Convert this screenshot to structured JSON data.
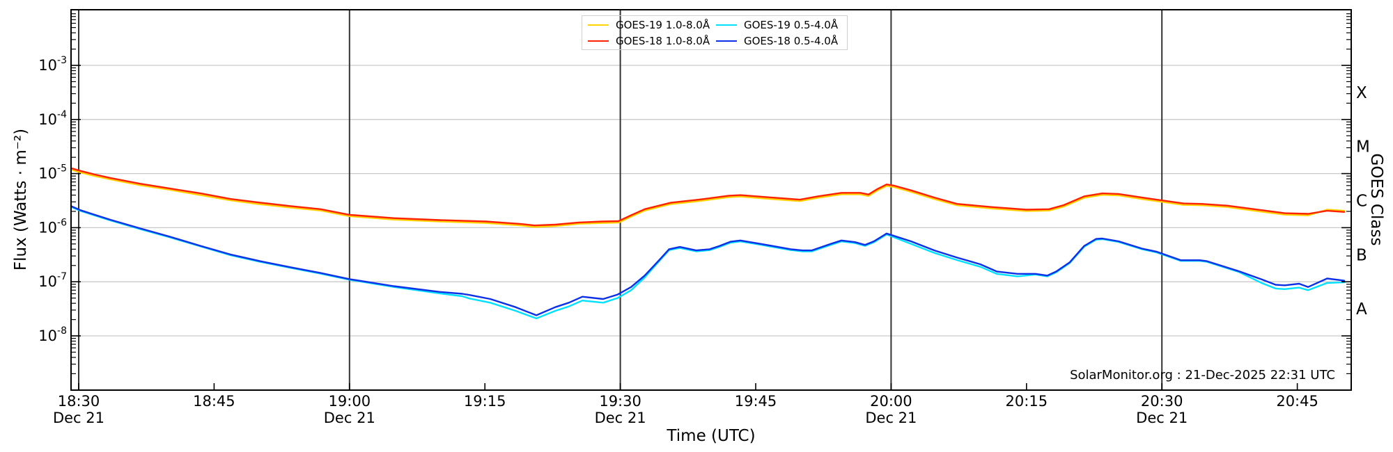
{
  "figure": {
    "watermark": "SolarMonitor.org : 21-Dec-2025 22:31 UTC",
    "background": "#ffffff"
  },
  "chart_data": {
    "type": "line",
    "title": "",
    "xlabel": "Time (UTC)",
    "ylabel": "Flux (Watts · m⁻²)",
    "ylabel_right": "GOES Class",
    "yscale": "log",
    "ylim": [
      1e-09,
      0.01
    ],
    "x_axis_note": "minutes after 18:30 UTC, 21 Dec 2025",
    "x_minutes_range": [
      -0.85,
      141.0
    ],
    "x_major_tick_minutes": [
      0,
      15,
      30,
      45,
      60,
      75,
      90,
      105,
      120,
      135
    ],
    "x_major_tick_labels": [
      "18:30",
      "18:45",
      "19:00",
      "19:15",
      "19:30",
      "19:45",
      "20:00",
      "20:15",
      "20:30",
      "20:45"
    ],
    "x_date_tick_minutes": [
      0,
      30,
      60,
      90,
      120
    ],
    "x_date_label": "Dec 21",
    "y_tick_exponents": [
      -3,
      -4,
      -5,
      -6,
      -7,
      -8
    ],
    "y_tick_labels": [
      "10⁻³",
      "10⁻⁴",
      "10⁻⁵",
      "10⁻⁶",
      "10⁻⁷",
      "10⁻⁸"
    ],
    "goes_classes": [
      {
        "label": "X",
        "exponent": -3.5
      },
      {
        "label": "M",
        "exponent": -4.5
      },
      {
        "label": "C",
        "exponent": -5.5
      },
      {
        "label": "B",
        "exponent": -6.5
      },
      {
        "label": "A",
        "exponent": -7.5
      }
    ],
    "grid_on": true,
    "grid_color": "#c9c9c9",
    "date_line_color": "#333333",
    "legend_position": "upper center",
    "series": [
      {
        "name": "GOES-19 1.0-8.0Å",
        "color": "#ffd300",
        "points": [
          [
            -0.85,
            1.18e-05
          ],
          [
            0.2,
            1.05e-05
          ],
          [
            1.8,
            9e-06
          ],
          [
            3.5,
            7.8e-06
          ],
          [
            6.8,
            6.1e-06
          ],
          [
            10.1,
            5e-06
          ],
          [
            13.5,
            4e-06
          ],
          [
            16.8,
            3.2e-06
          ],
          [
            20.1,
            2.7e-06
          ],
          [
            23.5,
            2.35e-06
          ],
          [
            26.8,
            2.07e-06
          ],
          [
            30,
            1.63e-06
          ],
          [
            34.9,
            1.41e-06
          ],
          [
            40,
            1.3e-06
          ],
          [
            45.1,
            1.22e-06
          ],
          [
            49,
            1.1e-06
          ],
          [
            50.5,
            1.03e-06
          ],
          [
            52.8,
            1.07e-06
          ],
          [
            55.4,
            1.18e-06
          ],
          [
            58,
            1.22e-06
          ],
          [
            59.8,
            1.24e-06
          ],
          [
            61.2,
            1.6e-06
          ],
          [
            62.7,
            2.07e-06
          ],
          [
            65.6,
            2.73e-06
          ],
          [
            68.7,
            3.1e-06
          ],
          [
            72,
            3.67e-06
          ],
          [
            73.3,
            3.76e-06
          ],
          [
            76.8,
            3.38e-06
          ],
          [
            79.9,
            3.1e-06
          ],
          [
            81.9,
            3.57e-06
          ],
          [
            84.5,
            4.14e-06
          ],
          [
            86.6,
            4.14e-06
          ],
          [
            87.5,
            3.85e-06
          ],
          [
            88.5,
            4.89e-06
          ],
          [
            89.5,
            5.92e-06
          ],
          [
            90.3,
            5.64e-06
          ],
          [
            92.2,
            4.61e-06
          ],
          [
            94.8,
            3.38e-06
          ],
          [
            97.3,
            2.59e-06
          ],
          [
            101.2,
            2.26e-06
          ],
          [
            105,
            2.02e-06
          ],
          [
            107.5,
            2.07e-06
          ],
          [
            109.1,
            2.44e-06
          ],
          [
            111.4,
            3.57e-06
          ],
          [
            113.4,
            4.04e-06
          ],
          [
            115.2,
            3.95e-06
          ],
          [
            117.8,
            3.38e-06
          ],
          [
            119.4,
            3.1e-06
          ],
          [
            122.4,
            2.63e-06
          ],
          [
            124.4,
            2.59e-06
          ],
          [
            127.3,
            2.4e-06
          ],
          [
            131.1,
            1.97e-06
          ],
          [
            133.6,
            1.74e-06
          ],
          [
            136.2,
            1.69e-06
          ],
          [
            138.3,
            2.15e-06
          ],
          [
            140.2,
            2.05e-06
          ]
        ]
      },
      {
        "name": "GOES-18 1.0-8.0Å",
        "color": "#ff2200",
        "points": [
          [
            -0.85,
            1.26e-05
          ],
          [
            0.2,
            1.12e-05
          ],
          [
            1.8,
            9.6e-06
          ],
          [
            3.5,
            8.3e-06
          ],
          [
            6.8,
            6.5e-06
          ],
          [
            10.1,
            5.3e-06
          ],
          [
            13.5,
            4.3e-06
          ],
          [
            16.8,
            3.4e-06
          ],
          [
            20.1,
            2.9e-06
          ],
          [
            23.5,
            2.5e-06
          ],
          [
            26.8,
            2.2e-06
          ],
          [
            30,
            1.73e-06
          ],
          [
            34.9,
            1.5e-06
          ],
          [
            40,
            1.38e-06
          ],
          [
            45.1,
            1.3e-06
          ],
          [
            49,
            1.17e-06
          ],
          [
            50.5,
            1.1e-06
          ],
          [
            52.8,
            1.14e-06
          ],
          [
            55.4,
            1.25e-06
          ],
          [
            58,
            1.3e-06
          ],
          [
            59.8,
            1.32e-06
          ],
          [
            61.2,
            1.7e-06
          ],
          [
            62.7,
            2.2e-06
          ],
          [
            65.6,
            2.9e-06
          ],
          [
            68.7,
            3.3e-06
          ],
          [
            72,
            3.9e-06
          ],
          [
            73.3,
            4e-06
          ],
          [
            76.8,
            3.6e-06
          ],
          [
            79.9,
            3.3e-06
          ],
          [
            81.9,
            3.8e-06
          ],
          [
            84.5,
            4.4e-06
          ],
          [
            86.6,
            4.4e-06
          ],
          [
            87.5,
            4.1e-06
          ],
          [
            88.5,
            5.2e-06
          ],
          [
            89.5,
            6.3e-06
          ],
          [
            90.3,
            6e-06
          ],
          [
            92.2,
            4.9e-06
          ],
          [
            94.8,
            3.6e-06
          ],
          [
            97.3,
            2.75e-06
          ],
          [
            101.2,
            2.4e-06
          ],
          [
            105,
            2.15e-06
          ],
          [
            107.5,
            2.2e-06
          ],
          [
            109.1,
            2.6e-06
          ],
          [
            111.4,
            3.8e-06
          ],
          [
            113.4,
            4.3e-06
          ],
          [
            115.2,
            4.2e-06
          ],
          [
            117.8,
            3.6e-06
          ],
          [
            119.4,
            3.3e-06
          ],
          [
            122.4,
            2.8e-06
          ],
          [
            124.4,
            2.75e-06
          ],
          [
            127.3,
            2.55e-06
          ],
          [
            131.1,
            2.1e-06
          ],
          [
            133.6,
            1.85e-06
          ],
          [
            136.2,
            1.8e-06
          ],
          [
            138.3,
            2.05e-06
          ],
          [
            140.2,
            1.95e-06
          ]
        ]
      },
      {
        "name": "GOES-19 0.5-4.0Å",
        "color": "#00e1ff",
        "points": [
          [
            -0.85,
            2.42e-06
          ],
          [
            0.2,
            2.04e-06
          ],
          [
            3.5,
            1.36e-06
          ],
          [
            6.8,
            9.4e-07
          ],
          [
            10.1,
            6.6e-07
          ],
          [
            13.5,
            4.5e-07
          ],
          [
            16.8,
            3.1e-07
          ],
          [
            20.1,
            2.33e-07
          ],
          [
            23.5,
            1.8e-07
          ],
          [
            26.8,
            1.41e-07
          ],
          [
            30,
            1.09e-07
          ],
          [
            34.9,
            8e-08
          ],
          [
            40,
            6.1e-08
          ],
          [
            42.5,
            5.4e-08
          ],
          [
            43.3,
            4.9e-08
          ],
          [
            45.6,
            4.1e-08
          ],
          [
            48.4,
            2.9e-08
          ],
          [
            50.7,
            2.1e-08
          ],
          [
            52.8,
            2.9e-08
          ],
          [
            54.3,
            3.5e-08
          ],
          [
            55.8,
            4.5e-08
          ],
          [
            58.1,
            4.1e-08
          ],
          [
            59.7,
            5e-08
          ],
          [
            61.2,
            7e-08
          ],
          [
            62.7,
            1.2e-07
          ],
          [
            64.3,
            2.4e-07
          ],
          [
            65.4,
            3.84e-07
          ],
          [
            66.6,
            4.22e-07
          ],
          [
            68.4,
            3.65e-07
          ],
          [
            69.9,
            3.84e-07
          ],
          [
            71,
            4.42e-07
          ],
          [
            72.2,
            5.28e-07
          ],
          [
            73.3,
            5.57e-07
          ],
          [
            75.3,
            4.9e-07
          ],
          [
            76.8,
            4.42e-07
          ],
          [
            78.9,
            3.84e-07
          ],
          [
            80.2,
            3.65e-07
          ],
          [
            81.2,
            3.65e-07
          ],
          [
            83.3,
            4.8e-07
          ],
          [
            84.5,
            5.57e-07
          ],
          [
            86,
            5.18e-07
          ],
          [
            87.1,
            4.61e-07
          ],
          [
            88.1,
            5.38e-07
          ],
          [
            89.5,
            7.5e-07
          ],
          [
            92.2,
            5.04e-07
          ],
          [
            94.8,
            3.42e-07
          ],
          [
            97.3,
            2.52e-07
          ],
          [
            99.9,
            1.89e-07
          ],
          [
            101.7,
            1.4e-07
          ],
          [
            104,
            1.26e-07
          ],
          [
            106,
            1.36e-07
          ],
          [
            107.3,
            1.26e-07
          ],
          [
            108.3,
            1.5e-07
          ],
          [
            109.8,
            2.23e-07
          ],
          [
            111.4,
            4.46e-07
          ],
          [
            112.7,
            6e-07
          ],
          [
            113.4,
            6.11e-07
          ],
          [
            115.2,
            5.43e-07
          ],
          [
            117.8,
            3.98e-07
          ],
          [
            119.4,
            3.49e-07
          ],
          [
            122.1,
            2.43e-07
          ],
          [
            124.2,
            2.43e-07
          ],
          [
            125,
            2.33e-07
          ],
          [
            128.6,
            1.5e-07
          ],
          [
            131.1,
            9.4e-08
          ],
          [
            132.6,
            7.5e-08
          ],
          [
            133.6,
            7.3e-08
          ],
          [
            135.2,
            7.8e-08
          ],
          [
            136.2,
            7e-08
          ],
          [
            138.3,
            9.5e-08
          ],
          [
            140.2,
            9.8e-08
          ]
        ]
      },
      {
        "name": "GOES-18 0.5-4.0Å",
        "color": "#0c2fe8",
        "points": [
          [
            -0.85,
            2.5e-06
          ],
          [
            0.2,
            2.1e-06
          ],
          [
            3.5,
            1.4e-06
          ],
          [
            6.8,
            9.7e-07
          ],
          [
            10.1,
            6.8e-07
          ],
          [
            13.5,
            4.6e-07
          ],
          [
            16.8,
            3.2e-07
          ],
          [
            20.1,
            2.4e-07
          ],
          [
            23.5,
            1.85e-07
          ],
          [
            26.8,
            1.45e-07
          ],
          [
            30,
            1.12e-07
          ],
          [
            34.9,
            8.3e-08
          ],
          [
            40,
            6.5e-08
          ],
          [
            42.5,
            6e-08
          ],
          [
            43.3,
            5.7e-08
          ],
          [
            45.6,
            4.8e-08
          ],
          [
            48.4,
            3.4e-08
          ],
          [
            50.7,
            2.4e-08
          ],
          [
            52.8,
            3.4e-08
          ],
          [
            54.3,
            4.1e-08
          ],
          [
            55.8,
            5.3e-08
          ],
          [
            58.1,
            4.8e-08
          ],
          [
            59.7,
            5.8e-08
          ],
          [
            61.2,
            8e-08
          ],
          [
            62.7,
            1.3e-07
          ],
          [
            64.3,
            2.5e-07
          ],
          [
            65.4,
            4e-07
          ],
          [
            66.6,
            4.4e-07
          ],
          [
            68.4,
            3.8e-07
          ],
          [
            69.9,
            4e-07
          ],
          [
            71,
            4.6e-07
          ],
          [
            72.2,
            5.5e-07
          ],
          [
            73.3,
            5.8e-07
          ],
          [
            75.3,
            5.1e-07
          ],
          [
            76.8,
            4.6e-07
          ],
          [
            78.9,
            4e-07
          ],
          [
            80.2,
            3.8e-07
          ],
          [
            81.2,
            3.8e-07
          ],
          [
            83.3,
            5e-07
          ],
          [
            84.5,
            5.8e-07
          ],
          [
            86,
            5.4e-07
          ],
          [
            87.1,
            4.8e-07
          ],
          [
            88.1,
            5.6e-07
          ],
          [
            89.5,
            7.8e-07
          ],
          [
            92.2,
            5.6e-07
          ],
          [
            94.8,
            3.8e-07
          ],
          [
            97.3,
            2.8e-07
          ],
          [
            99.9,
            2.1e-07
          ],
          [
            101.7,
            1.55e-07
          ],
          [
            104,
            1.4e-07
          ],
          [
            106,
            1.4e-07
          ],
          [
            107.3,
            1.3e-07
          ],
          [
            108.3,
            1.55e-07
          ],
          [
            109.8,
            2.3e-07
          ],
          [
            111.4,
            4.6e-07
          ],
          [
            112.7,
            6.2e-07
          ],
          [
            113.4,
            6.3e-07
          ],
          [
            115.2,
            5.6e-07
          ],
          [
            117.8,
            4.1e-07
          ],
          [
            119.4,
            3.6e-07
          ],
          [
            122.1,
            2.5e-07
          ],
          [
            124.2,
            2.5e-07
          ],
          [
            125,
            2.4e-07
          ],
          [
            128.6,
            1.55e-07
          ],
          [
            131.1,
            1.1e-07
          ],
          [
            132.6,
            8.8e-08
          ],
          [
            133.6,
            8.6e-08
          ],
          [
            135.2,
            9.2e-08
          ],
          [
            136.2,
            8e-08
          ],
          [
            138.3,
            1.15e-07
          ],
          [
            140.2,
            1.05e-07
          ]
        ]
      }
    ],
    "watermark": "SolarMonitor.org : 21-Dec-2025 22:31 UTC"
  }
}
